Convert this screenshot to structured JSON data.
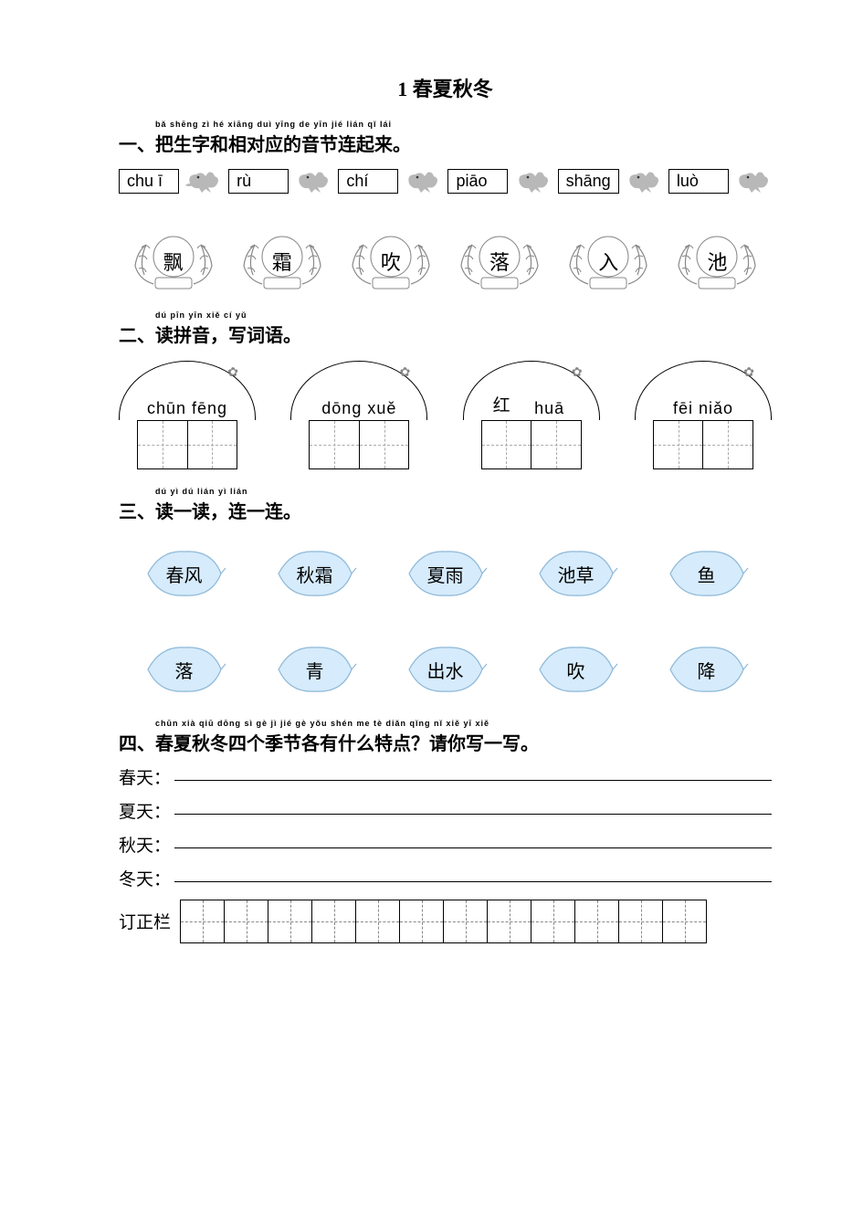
{
  "title": "1 春夏秋冬",
  "section1": {
    "ruby": "bǎ shēng zì hé xiāng duì yīng de yīn jié lián qǐ lái",
    "heading": "一、把生字和相对应的音节连起来。",
    "pinyin": [
      "chu ī",
      "rù",
      "chí",
      "piāo",
      "shāng",
      "luò"
    ],
    "chars": [
      "飘",
      "霜",
      "吹",
      "落",
      "入",
      "池"
    ],
    "box_border": "#000000",
    "box_font": "Arial",
    "box_fontsize": 18,
    "bird_color": "#b8b8b8",
    "wreath_stroke": "#9a9a9a"
  },
  "section2": {
    "ruby": "dú pīn yīn   xiě cí yǔ",
    "heading": "二、读拼音，写词语。",
    "items": [
      {
        "pinyin": "chūn fēng",
        "prefill": ""
      },
      {
        "pinyin": "dōng  xuě",
        "prefill": ""
      },
      {
        "pinyin": "huā",
        "prefill": "红"
      },
      {
        "pinyin": "fēi  niǎo",
        "prefill": ""
      }
    ],
    "cap_border": "#000000",
    "cell_border": "#000000",
    "cell_guide": "#aaaaaa",
    "pinyin_fontsize": 18
  },
  "section3": {
    "ruby": "dú yì dú   lián yì lián",
    "heading": "三、读一读，连一连。",
    "row1": [
      "春风",
      "秋霜",
      "夏雨",
      "池草",
      "鱼"
    ],
    "row2": [
      "落",
      "青",
      "出水",
      "吹",
      "降"
    ],
    "leaf_fill": "#d6ebfb",
    "leaf_stroke": "#8db8d8",
    "leaf_fontsize": 20
  },
  "section4": {
    "ruby": "chūn xià qiū dōng sì gè jì jié gè yǒu shén me tè diǎn  qǐng nǐ xiě yī xiě",
    "heading": "四、春夏秋冬四个季节各有什么特点？请你写一写。",
    "lines": [
      "春天：",
      "夏天：",
      "秋天：",
      "冬天："
    ],
    "correction_label": "订正栏",
    "correction_cells": 12,
    "line_color": "#000000",
    "text_fontsize": 19
  },
  "colors": {
    "background": "#ffffff",
    "text": "#000000"
  },
  "typography": {
    "title_fontsize": 22,
    "heading_fontsize": 20,
    "ruby_fontsize": 9,
    "body_font": "SimSun"
  }
}
